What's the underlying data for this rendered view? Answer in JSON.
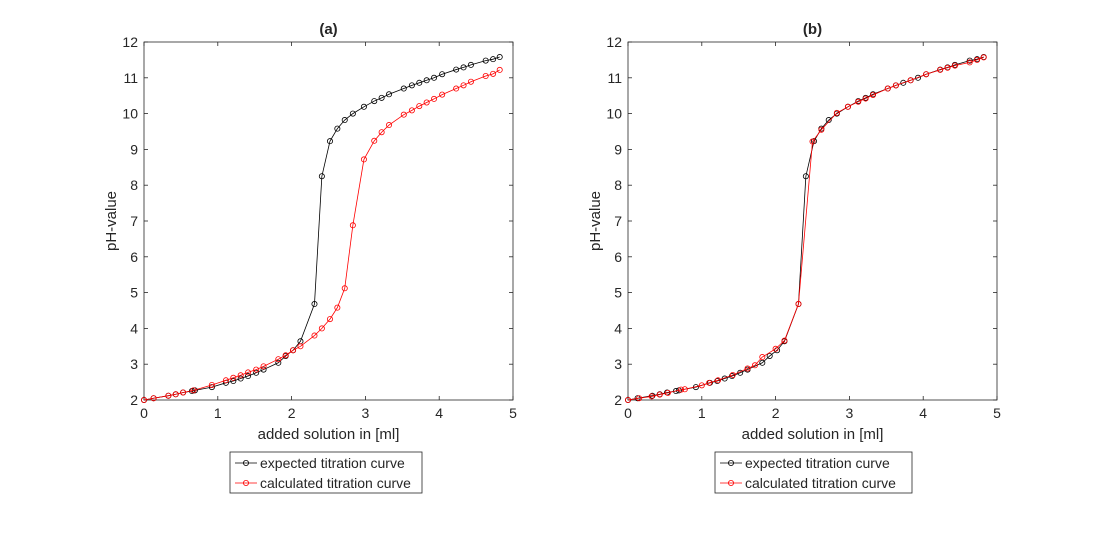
{
  "chart_data": [
    {
      "type": "line",
      "title": "(a)",
      "xlabel": "added solution in [ml]",
      "ylabel": "pH-value",
      "xlim": [
        0,
        5
      ],
      "ylim": [
        2,
        12
      ],
      "xticks": [
        "0",
        "1",
        "2",
        "3",
        "4",
        "5"
      ],
      "yticks": [
        "2",
        "3",
        "4",
        "5",
        "6",
        "7",
        "8",
        "9",
        "10",
        "11",
        "12"
      ],
      "legend_position": "below",
      "series": [
        {
          "name": "expected titration curve",
          "color": "#000000",
          "x": [
            0,
            0.13,
            0.33,
            0.43,
            0.53,
            0.65,
            0.69,
            0.92,
            1.11,
            1.21,
            1.31,
            1.41,
            1.52,
            1.62,
            1.82,
            1.92,
            2.02,
            2.12,
            2.31,
            2.41,
            2.52,
            2.62,
            2.72,
            2.83,
            2.98,
            3.12,
            3.22,
            3.32,
            3.52,
            3.63,
            3.73,
            3.83,
            3.93,
            4.04,
            4.23,
            4.33,
            4.43,
            4.63,
            4.73,
            4.82
          ],
          "y": [
            2.0,
            2.05,
            2.12,
            2.16,
            2.21,
            2.25,
            2.27,
            2.36,
            2.48,
            2.53,
            2.6,
            2.67,
            2.76,
            2.85,
            3.04,
            3.23,
            3.39,
            3.64,
            4.68,
            8.25,
            9.23,
            9.58,
            9.82,
            10.0,
            10.19,
            10.35,
            10.44,
            10.54,
            10.7,
            10.79,
            10.86,
            10.93,
            11.0,
            11.1,
            11.23,
            11.29,
            11.36,
            11.48,
            11.52,
            11.58
          ]
        },
        {
          "name": "calculated titration curve",
          "color": "#ff0000",
          "x": [
            0,
            0.13,
            0.33,
            0.43,
            0.53,
            0.67,
            0.92,
            1.11,
            1.21,
            1.31,
            1.41,
            1.52,
            1.62,
            1.82,
            1.92,
            2.02,
            2.12,
            2.31,
            2.41,
            2.52,
            2.62,
            2.72,
            2.83,
            2.98,
            3.12,
            3.22,
            3.32,
            3.52,
            3.63,
            3.73,
            3.83,
            3.93,
            4.04,
            4.23,
            4.33,
            4.43,
            4.63,
            4.73,
            4.82
          ],
          "y": [
            2.0,
            2.05,
            2.12,
            2.16,
            2.21,
            2.27,
            2.42,
            2.55,
            2.62,
            2.69,
            2.77,
            2.85,
            2.94,
            3.14,
            3.25,
            3.39,
            3.5,
            3.8,
            4.0,
            4.26,
            4.58,
            5.12,
            6.88,
            8.72,
            9.24,
            9.48,
            9.68,
            9.97,
            10.09,
            10.21,
            10.31,
            10.41,
            10.53,
            10.7,
            10.79,
            10.89,
            11.05,
            11.11,
            11.22
          ]
        }
      ]
    },
    {
      "type": "line",
      "title": "(b)",
      "xlabel": "added solution in [ml]",
      "ylabel": "pH-value",
      "xlim": [
        0,
        5
      ],
      "ylim": [
        2,
        12
      ],
      "xticks": [
        "0",
        "1",
        "2",
        "3",
        "4",
        "5"
      ],
      "yticks": [
        "2",
        "3",
        "4",
        "5",
        "6",
        "7",
        "8",
        "9",
        "10",
        "11",
        "12"
      ],
      "legend_position": "below",
      "series": [
        {
          "name": "expected titration curve",
          "color": "#000000",
          "x": [
            0,
            0.13,
            0.33,
            0.43,
            0.53,
            0.65,
            0.69,
            0.92,
            1.11,
            1.21,
            1.31,
            1.41,
            1.52,
            1.62,
            1.82,
            1.92,
            2.02,
            2.12,
            2.31,
            2.41,
            2.52,
            2.62,
            2.72,
            2.83,
            2.98,
            3.12,
            3.22,
            3.32,
            3.52,
            3.63,
            3.73,
            3.83,
            3.93,
            4.04,
            4.23,
            4.33,
            4.43,
            4.63,
            4.73,
            4.82
          ],
          "y": [
            2.0,
            2.05,
            2.12,
            2.16,
            2.21,
            2.25,
            2.27,
            2.36,
            2.48,
            2.53,
            2.6,
            2.67,
            2.76,
            2.85,
            3.04,
            3.23,
            3.39,
            3.64,
            4.68,
            8.25,
            9.23,
            9.58,
            9.82,
            10.0,
            10.19,
            10.35,
            10.44,
            10.54,
            10.7,
            10.79,
            10.86,
            10.93,
            11.0,
            11.1,
            11.23,
            11.29,
            11.36,
            11.48,
            11.52,
            11.58
          ]
        },
        {
          "name": "calculated titration curve",
          "color": "#ff0000",
          "x": [
            0,
            0.15,
            0.32,
            0.43,
            0.54,
            0.72,
            0.77,
            1.0,
            1.1,
            1.22,
            1.42,
            1.62,
            1.72,
            1.82,
            2.0,
            2.12,
            2.31,
            2.5,
            2.62,
            2.83,
            2.98,
            3.12,
            3.22,
            3.32,
            3.52,
            3.63,
            3.83,
            4.04,
            4.23,
            4.33,
            4.43,
            4.63,
            4.73,
            4.82
          ],
          "y": [
            2.0,
            2.05,
            2.1,
            2.15,
            2.2,
            2.29,
            2.3,
            2.41,
            2.48,
            2.55,
            2.7,
            2.88,
            2.97,
            3.2,
            3.43,
            3.66,
            4.68,
            9.22,
            9.55,
            10.02,
            10.19,
            10.33,
            10.42,
            10.52,
            10.7,
            10.79,
            10.93,
            11.1,
            11.22,
            11.28,
            11.34,
            11.43,
            11.5,
            11.57
          ]
        }
      ]
    }
  ]
}
